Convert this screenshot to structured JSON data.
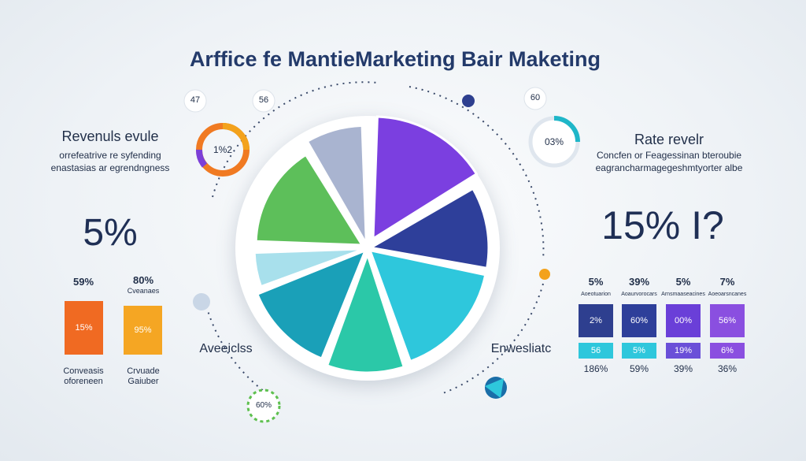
{
  "title": "Arffice fe MantieMarketing Bair Maketing",
  "bubbles": [
    "47",
    "56",
    "60"
  ],
  "rings": {
    "left": "1%2",
    "right": "03%"
  },
  "left_panel": {
    "heading": "Revenuls evule",
    "subtitle": [
      "orrefeatrive re syfending",
      "enastasias ar egrendngness"
    ],
    "big_value": "5%",
    "items": [
      {
        "value": "59%",
        "bar": "15%",
        "caption": [
          "Conveasis",
          "oforeneen"
        ]
      },
      {
        "value": "80%",
        "label": "Cveanaes",
        "bar": "95%",
        "caption": [
          "Crvuade",
          "Gaiuber"
        ]
      }
    ]
  },
  "left_caption": "Aveeiclss",
  "right_caption": "Enwesliatc",
  "bottom_badge": "60%",
  "right_panel": {
    "heading": "Rate revelr",
    "subtitle": [
      "Concfen or Feagessinan bteroubie",
      "eagrancharmagegeshmtyorter albe"
    ],
    "big_value": "15% I?",
    "columns": [
      {
        "header": "5%",
        "label": "Aoeotuarion",
        "top": "2%",
        "bottom": "56",
        "footer": "186%"
      },
      {
        "header": "39%",
        "label": "Aoaurvorocars",
        "top": "60%",
        "bottom": "5%",
        "footer": "59%"
      },
      {
        "header": "5%",
        "label": "Arnsmaaseacines",
        "top": "00%",
        "bottom": "19%",
        "footer": "39%"
      },
      {
        "header": "7%",
        "label": "Aoeoarsncanes",
        "top": "56%",
        "bottom": "6%",
        "footer": "36%"
      }
    ]
  }
}
